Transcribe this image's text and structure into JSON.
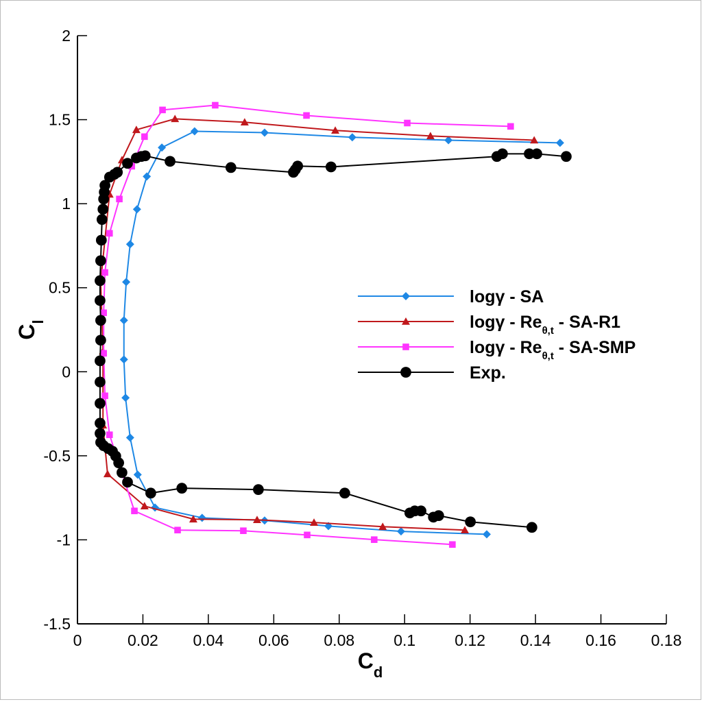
{
  "chart_data": {
    "type": "line",
    "xlabel": [
      "C",
      "d"
    ],
    "ylabel": [
      "C",
      "l"
    ],
    "xlim": [
      0,
      0.18
    ],
    "ylim": [
      -1.5,
      2
    ],
    "xticks": [
      0,
      0.02,
      0.04,
      0.06,
      0.08,
      0.1,
      0.12,
      0.14,
      0.16,
      0.18
    ],
    "yticks": [
      -1.5,
      -1,
      -0.5,
      0,
      0.5,
      1,
      1.5,
      2
    ],
    "legend": "center right",
    "series": [
      {
        "name": [
          "logγ - SA"
        ],
        "color": "#1e88e5",
        "marker": "diamond",
        "x": [
          0.1251,
          0.0989,
          0.0767,
          0.0572,
          0.0381,
          0.0237,
          0.0184,
          0.0161,
          0.0147,
          0.0142,
          0.0142,
          0.0149,
          0.0161,
          0.0182,
          0.0212,
          0.0258,
          0.0358,
          0.0572,
          0.084,
          0.1134,
          0.1475
        ],
        "values": [
          -0.967,
          -0.95,
          -0.918,
          -0.885,
          -0.869,
          -0.808,
          -0.612,
          -0.392,
          -0.155,
          0.073,
          0.306,
          0.534,
          0.759,
          0.967,
          1.162,
          1.334,
          1.431,
          1.423,
          1.395,
          1.378,
          1.362
        ]
      },
      {
        "name": [
          "logγ - Re",
          "θ,t",
          " - SA-R1"
        ],
        "color": "#c0181c",
        "marker": "triangle",
        "x": [
          0.1184,
          0.0933,
          0.0723,
          0.0549,
          0.0354,
          0.0205,
          0.0092,
          0.0078,
          0.0078,
          0.0071,
          0.0098,
          0.0136,
          0.018,
          0.0298,
          0.0511,
          0.0788,
          0.1079,
          0.1396
        ],
        "values": [
          -0.942,
          -0.922,
          -0.897,
          -0.881,
          -0.877,
          -0.799,
          -0.608,
          -0.318,
          0.122,
          0.538,
          1.056,
          1.26,
          1.44,
          1.505,
          1.485,
          1.436,
          1.403,
          1.378
        ]
      },
      {
        "name": [
          "logγ - Re",
          "θ,t",
          " - SA-SMP"
        ],
        "color": "#ff33ff",
        "marker": "square",
        "x": [
          0.1146,
          0.0907,
          0.0702,
          0.0507,
          0.0306,
          0.0174,
          0.0098,
          0.0084,
          0.008,
          0.008,
          0.0084,
          0.0098,
          0.0128,
          0.0166,
          0.0205,
          0.026,
          0.0421,
          0.07,
          0.1008,
          0.1324
        ],
        "values": [
          -1.028,
          -0.999,
          -0.971,
          -0.946,
          -0.942,
          -0.828,
          -0.375,
          -0.143,
          0.11,
          0.351,
          0.591,
          0.824,
          1.028,
          1.223,
          1.399,
          1.558,
          1.586,
          1.525,
          1.48,
          1.46
        ]
      },
      {
        "name": [
          "Exp."
        ],
        "color": "#000000",
        "marker": "circle",
        "x": [
          0.1389,
          0.1201,
          0.1104,
          0.1088,
          0.105,
          0.1031,
          0.1016,
          0.0817,
          0.0553,
          0.0319,
          0.0224,
          0.0153,
          0.0136,
          0.0126,
          0.0117,
          0.0107,
          0.0094,
          0.008,
          0.0071,
          0.0069,
          0.0069,
          0.0069,
          0.0069,
          0.0069,
          0.0071,
          0.0071,
          0.0069,
          0.0069,
          0.0071,
          0.0073,
          0.0075,
          0.0078,
          0.008,
          0.0082,
          0.0084,
          0.0098,
          0.0113,
          0.0122,
          0.0153,
          0.018,
          0.0195,
          0.0207,
          0.0283,
          0.0469,
          0.066,
          0.0666,
          0.0673,
          0.0775,
          0.1282,
          0.1299,
          0.1381,
          0.1404,
          0.1494
        ],
        "values": [
          -0.926,
          -0.893,
          -0.856,
          -0.865,
          -0.828,
          -0.828,
          -0.84,
          -0.722,
          -0.701,
          -0.693,
          -0.722,
          -0.657,
          -0.6,
          -0.542,
          -0.502,
          -0.473,
          -0.457,
          -0.44,
          -0.42,
          -0.367,
          -0.306,
          -0.188,
          -0.061,
          0.065,
          0.188,
          0.306,
          0.424,
          0.542,
          0.661,
          0.783,
          0.906,
          0.967,
          1.028,
          1.069,
          1.109,
          1.158,
          1.175,
          1.187,
          1.24,
          1.272,
          1.281,
          1.285,
          1.252,
          1.215,
          1.187,
          1.203,
          1.224,
          1.219,
          1.281,
          1.297,
          1.297,
          1.297,
          1.281
        ]
      }
    ]
  }
}
